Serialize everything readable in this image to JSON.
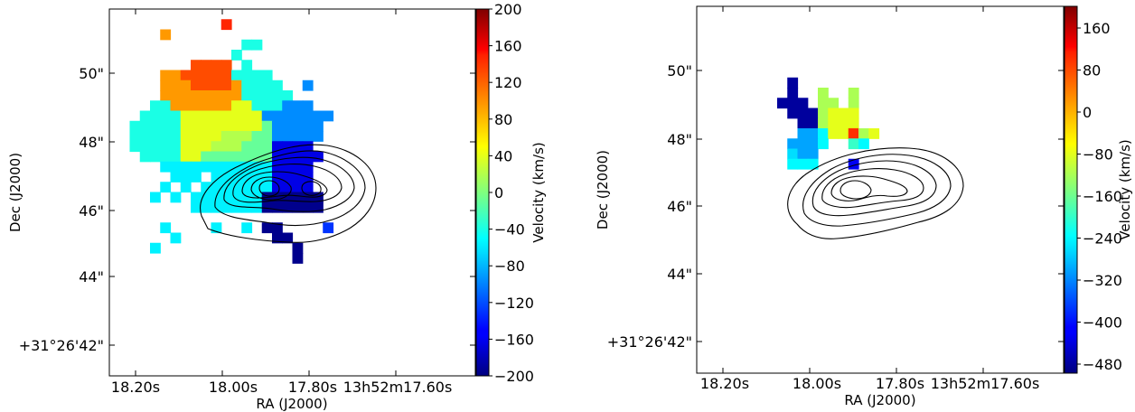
{
  "chart_data": [
    {
      "type": "heatmap",
      "title": "",
      "xlabel": "RA (J2000)",
      "ylabel": "Dec (J2000)",
      "x_tick_labels": [
        "18.20s",
        "18.00s",
        "17.80s",
        "13h52m17.60s"
      ],
      "y_tick_labels": [
        "50\"",
        "48\"",
        "46\"",
        "44\"",
        "+31°26'42\""
      ],
      "colorbar": {
        "label": "Velocity (km/s)",
        "range": [
          -200,
          200
        ],
        "ticks": [
          "200",
          "160",
          "120",
          "80",
          "40",
          "0",
          "−40",
          "−80",
          "−120",
          "−160",
          "−200"
        ],
        "colormap": "jet"
      },
      "grid": false,
      "contours": true,
      "pixels": [
        [
          11,
          1,
          135
        ],
        [
          5,
          2,
          90
        ],
        [
          13,
          3,
          -40
        ],
        [
          14,
          3,
          -40
        ],
        [
          12,
          4,
          -40
        ],
        [
          8,
          5,
          120
        ],
        [
          9,
          5,
          120
        ],
        [
          10,
          5,
          120
        ],
        [
          11,
          5,
          120
        ],
        [
          13,
          5,
          -40
        ],
        [
          5,
          6,
          90
        ],
        [
          6,
          6,
          90
        ],
        [
          7,
          6,
          120
        ],
        [
          8,
          6,
          120
        ],
        [
          9,
          6,
          120
        ],
        [
          10,
          6,
          120
        ],
        [
          11,
          6,
          120
        ],
        [
          12,
          6,
          -40
        ],
        [
          13,
          6,
          -40
        ],
        [
          14,
          6,
          -40
        ],
        [
          15,
          6,
          -40
        ],
        [
          5,
          7,
          90
        ],
        [
          6,
          7,
          90
        ],
        [
          7,
          7,
          90
        ],
        [
          8,
          7,
          120
        ],
        [
          9,
          7,
          120
        ],
        [
          10,
          7,
          120
        ],
        [
          11,
          7,
          120
        ],
        [
          12,
          7,
          90
        ],
        [
          13,
          7,
          -40
        ],
        [
          14,
          7,
          -40
        ],
        [
          15,
          7,
          -40
        ],
        [
          16,
          7,
          -40
        ],
        [
          19,
          7,
          -95
        ],
        [
          5,
          8,
          90
        ],
        [
          6,
          8,
          90
        ],
        [
          7,
          8,
          90
        ],
        [
          8,
          8,
          90
        ],
        [
          9,
          8,
          90
        ],
        [
          10,
          8,
          90
        ],
        [
          11,
          8,
          90
        ],
        [
          12,
          8,
          90
        ],
        [
          13,
          8,
          -40
        ],
        [
          14,
          8,
          -40
        ],
        [
          15,
          8,
          -40
        ],
        [
          16,
          8,
          -40
        ],
        [
          17,
          8,
          -40
        ],
        [
          4,
          9,
          -40
        ],
        [
          5,
          9,
          -40
        ],
        [
          6,
          9,
          90
        ],
        [
          7,
          9,
          90
        ],
        [
          8,
          9,
          90
        ],
        [
          9,
          9,
          90
        ],
        [
          10,
          9,
          90
        ],
        [
          11,
          9,
          90
        ],
        [
          12,
          9,
          40
        ],
        [
          13,
          9,
          40
        ],
        [
          14,
          9,
          -40
        ],
        [
          15,
          9,
          -40
        ],
        [
          16,
          9,
          -40
        ],
        [
          17,
          9,
          -95
        ],
        [
          18,
          9,
          -95
        ],
        [
          19,
          9,
          -95
        ],
        [
          3,
          10,
          -40
        ],
        [
          4,
          10,
          -40
        ],
        [
          5,
          10,
          -40
        ],
        [
          6,
          10,
          -40
        ],
        [
          7,
          10,
          40
        ],
        [
          8,
          10,
          40
        ],
        [
          9,
          10,
          40
        ],
        [
          10,
          10,
          40
        ],
        [
          11,
          10,
          40
        ],
        [
          12,
          10,
          40
        ],
        [
          13,
          10,
          40
        ],
        [
          14,
          10,
          40
        ],
        [
          15,
          10,
          -95
        ],
        [
          16,
          10,
          -95
        ],
        [
          17,
          10,
          -95
        ],
        [
          18,
          10,
          -95
        ],
        [
          19,
          10,
          -95
        ],
        [
          20,
          10,
          -95
        ],
        [
          21,
          10,
          -95
        ],
        [
          2,
          11,
          -40
        ],
        [
          3,
          11,
          -40
        ],
        [
          4,
          11,
          -40
        ],
        [
          5,
          11,
          -40
        ],
        [
          6,
          11,
          -40
        ],
        [
          7,
          11,
          40
        ],
        [
          8,
          11,
          40
        ],
        [
          9,
          11,
          40
        ],
        [
          10,
          11,
          40
        ],
        [
          11,
          11,
          40
        ],
        [
          12,
          11,
          40
        ],
        [
          13,
          11,
          40
        ],
        [
          14,
          11,
          40
        ],
        [
          15,
          11,
          -10
        ],
        [
          16,
          11,
          -95
        ],
        [
          17,
          11,
          -95
        ],
        [
          18,
          11,
          -95
        ],
        [
          19,
          11,
          -95
        ],
        [
          20,
          11,
          -95
        ],
        [
          2,
          12,
          -40
        ],
        [
          3,
          12,
          -40
        ],
        [
          4,
          12,
          -40
        ],
        [
          5,
          12,
          -40
        ],
        [
          6,
          12,
          -40
        ],
        [
          7,
          12,
          40
        ],
        [
          8,
          12,
          40
        ],
        [
          9,
          12,
          40
        ],
        [
          10,
          12,
          40
        ],
        [
          11,
          12,
          20
        ],
        [
          12,
          12,
          20
        ],
        [
          13,
          12,
          20
        ],
        [
          14,
          12,
          -10
        ],
        [
          15,
          12,
          -10
        ],
        [
          16,
          12,
          -95
        ],
        [
          17,
          12,
          -95
        ],
        [
          18,
          12,
          -95
        ],
        [
          19,
          12,
          -95
        ],
        [
          20,
          12,
          -95
        ],
        [
          2,
          13,
          -40
        ],
        [
          3,
          13,
          -40
        ],
        [
          4,
          13,
          -40
        ],
        [
          5,
          13,
          -40
        ],
        [
          6,
          13,
          -40
        ],
        [
          7,
          13,
          40
        ],
        [
          8,
          13,
          40
        ],
        [
          9,
          13,
          40
        ],
        [
          10,
          13,
          20
        ],
        [
          11,
          13,
          20
        ],
        [
          12,
          13,
          20
        ],
        [
          13,
          13,
          -10
        ],
        [
          14,
          13,
          -10
        ],
        [
          15,
          13,
          -10
        ],
        [
          16,
          13,
          -160
        ],
        [
          17,
          13,
          -160
        ],
        [
          18,
          13,
          -160
        ],
        [
          19,
          13,
          -160
        ],
        [
          3,
          14,
          -40
        ],
        [
          4,
          14,
          -40
        ],
        [
          5,
          14,
          -40
        ],
        [
          6,
          14,
          -40
        ],
        [
          7,
          14,
          40
        ],
        [
          8,
          14,
          40
        ],
        [
          9,
          14,
          -10
        ],
        [
          10,
          14,
          -10
        ],
        [
          11,
          14,
          -10
        ],
        [
          12,
          14,
          -10
        ],
        [
          13,
          14,
          -10
        ],
        [
          14,
          14,
          -10
        ],
        [
          15,
          14,
          -10
        ],
        [
          16,
          14,
          -160
        ],
        [
          17,
          14,
          -160
        ],
        [
          18,
          14,
          -160
        ],
        [
          19,
          14,
          -160
        ],
        [
          20,
          14,
          -160
        ],
        [
          5,
          15,
          -55
        ],
        [
          6,
          15,
          -55
        ],
        [
          7,
          15,
          -55
        ],
        [
          8,
          15,
          -55
        ],
        [
          9,
          15,
          -55
        ],
        [
          10,
          15,
          -55
        ],
        [
          11,
          15,
          -55
        ],
        [
          12,
          15,
          -55
        ],
        [
          13,
          15,
          -55
        ],
        [
          14,
          15,
          -55
        ],
        [
          15,
          15,
          -55
        ],
        [
          16,
          15,
          -160
        ],
        [
          17,
          15,
          -160
        ],
        [
          18,
          15,
          -160
        ],
        [
          19,
          15,
          -160
        ],
        [
          6,
          16,
          -55
        ],
        [
          7,
          16,
          -55
        ],
        [
          8,
          16,
          -55
        ],
        [
          10,
          16,
          -55
        ],
        [
          11,
          16,
          -55
        ],
        [
          12,
          16,
          -55
        ],
        [
          13,
          16,
          -55
        ],
        [
          14,
          16,
          -55
        ],
        [
          15,
          16,
          -55
        ],
        [
          16,
          16,
          -160
        ],
        [
          17,
          16,
          -160
        ],
        [
          18,
          16,
          -160
        ],
        [
          19,
          16,
          -160
        ],
        [
          5,
          17,
          -55
        ],
        [
          7,
          17,
          -55
        ],
        [
          9,
          17,
          -55
        ],
        [
          10,
          17,
          -55
        ],
        [
          11,
          17,
          -55
        ],
        [
          12,
          17,
          -55
        ],
        [
          13,
          17,
          -55
        ],
        [
          14,
          17,
          -55
        ],
        [
          15,
          17,
          -55
        ],
        [
          16,
          17,
          -160
        ],
        [
          17,
          17,
          -160
        ],
        [
          18,
          17,
          -160
        ],
        [
          19,
          17,
          -160
        ],
        [
          4,
          18,
          -55
        ],
        [
          6,
          18,
          -55
        ],
        [
          8,
          18,
          -55
        ],
        [
          9,
          18,
          -55
        ],
        [
          10,
          18,
          -55
        ],
        [
          11,
          18,
          -55
        ],
        [
          12,
          18,
          -55
        ],
        [
          13,
          18,
          -55
        ],
        [
          14,
          18,
          -55
        ],
        [
          15,
          18,
          -195
        ],
        [
          16,
          18,
          -195
        ],
        [
          17,
          18,
          -195
        ],
        [
          18,
          18,
          -195
        ],
        [
          19,
          18,
          -195
        ],
        [
          20,
          18,
          -195
        ],
        [
          8,
          19,
          -55
        ],
        [
          9,
          19,
          -55
        ],
        [
          10,
          19,
          -55
        ],
        [
          11,
          19,
          -55
        ],
        [
          12,
          19,
          -55
        ],
        [
          13,
          19,
          -55
        ],
        [
          14,
          19,
          -55
        ],
        [
          15,
          19,
          -195
        ],
        [
          16,
          19,
          -195
        ],
        [
          17,
          19,
          -195
        ],
        [
          18,
          19,
          -195
        ],
        [
          19,
          19,
          -195
        ],
        [
          20,
          19,
          -195
        ],
        [
          5,
          21,
          -55
        ],
        [
          10,
          21,
          -55
        ],
        [
          13,
          21,
          -55
        ],
        [
          15,
          21,
          -195
        ],
        [
          16,
          21,
          -195
        ],
        [
          21,
          21,
          -130
        ],
        [
          6,
          22,
          -55
        ],
        [
          16,
          22,
          -195
        ],
        [
          17,
          22,
          -195
        ],
        [
          4,
          23,
          -55
        ],
        [
          18,
          23,
          -195
        ],
        [
          18,
          24,
          -195
        ]
      ]
    },
    {
      "type": "heatmap",
      "title": "",
      "xlabel": "RA (J2000)",
      "ylabel": "Dec (J2000)",
      "x_tick_labels": [
        "18.20s",
        "18.00s",
        "17.80s",
        "13h52m17.60s"
      ],
      "y_tick_labels": [
        "50\"",
        "48\"",
        "46\"",
        "44\"",
        "+31°26'42\""
      ],
      "colorbar": {
        "label": "Velocity (km/s)",
        "range": [
          -500,
          200
        ],
        "ticks": [
          "160",
          "80",
          "0",
          "−80",
          "−160",
          "−240",
          "−320",
          "−400",
          "−480"
        ],
        "colormap": "jet"
      },
      "grid": false,
      "contours": true,
      "pixels": [
        [
          9,
          7,
          -480
        ],
        [
          9,
          8,
          -480
        ],
        [
          12,
          8,
          -120
        ],
        [
          15,
          8,
          -120
        ],
        [
          8,
          9,
          -480
        ],
        [
          9,
          9,
          -480
        ],
        [
          10,
          9,
          -480
        ],
        [
          12,
          9,
          -120
        ],
        [
          13,
          9,
          -120
        ],
        [
          15,
          9,
          -120
        ],
        [
          9,
          10,
          -480
        ],
        [
          10,
          10,
          -480
        ],
        [
          11,
          10,
          -480
        ],
        [
          12,
          10,
          -120
        ],
        [
          13,
          10,
          -80
        ],
        [
          14,
          10,
          -80
        ],
        [
          15,
          10,
          -80
        ],
        [
          10,
          11,
          -480
        ],
        [
          11,
          11,
          -480
        ],
        [
          12,
          11,
          -120
        ],
        [
          13,
          11,
          -80
        ],
        [
          14,
          11,
          -80
        ],
        [
          15,
          11,
          -80
        ],
        [
          10,
          12,
          -300
        ],
        [
          11,
          12,
          -300
        ],
        [
          12,
          12,
          -240
        ],
        [
          13,
          12,
          -80
        ],
        [
          14,
          12,
          -80
        ],
        [
          15,
          12,
          80
        ],
        [
          16,
          12,
          -120
        ],
        [
          17,
          12,
          -80
        ],
        [
          9,
          13,
          -300
        ],
        [
          10,
          13,
          -300
        ],
        [
          11,
          13,
          -300
        ],
        [
          12,
          13,
          -240
        ],
        [
          15,
          13,
          -200
        ],
        [
          16,
          13,
          -240
        ],
        [
          9,
          14,
          -260
        ],
        [
          10,
          14,
          -300
        ],
        [
          11,
          14,
          -300
        ],
        [
          9,
          15,
          -240
        ],
        [
          10,
          15,
          -240
        ],
        [
          11,
          15,
          -240
        ],
        [
          15,
          15,
          -420
        ]
      ]
    }
  ]
}
